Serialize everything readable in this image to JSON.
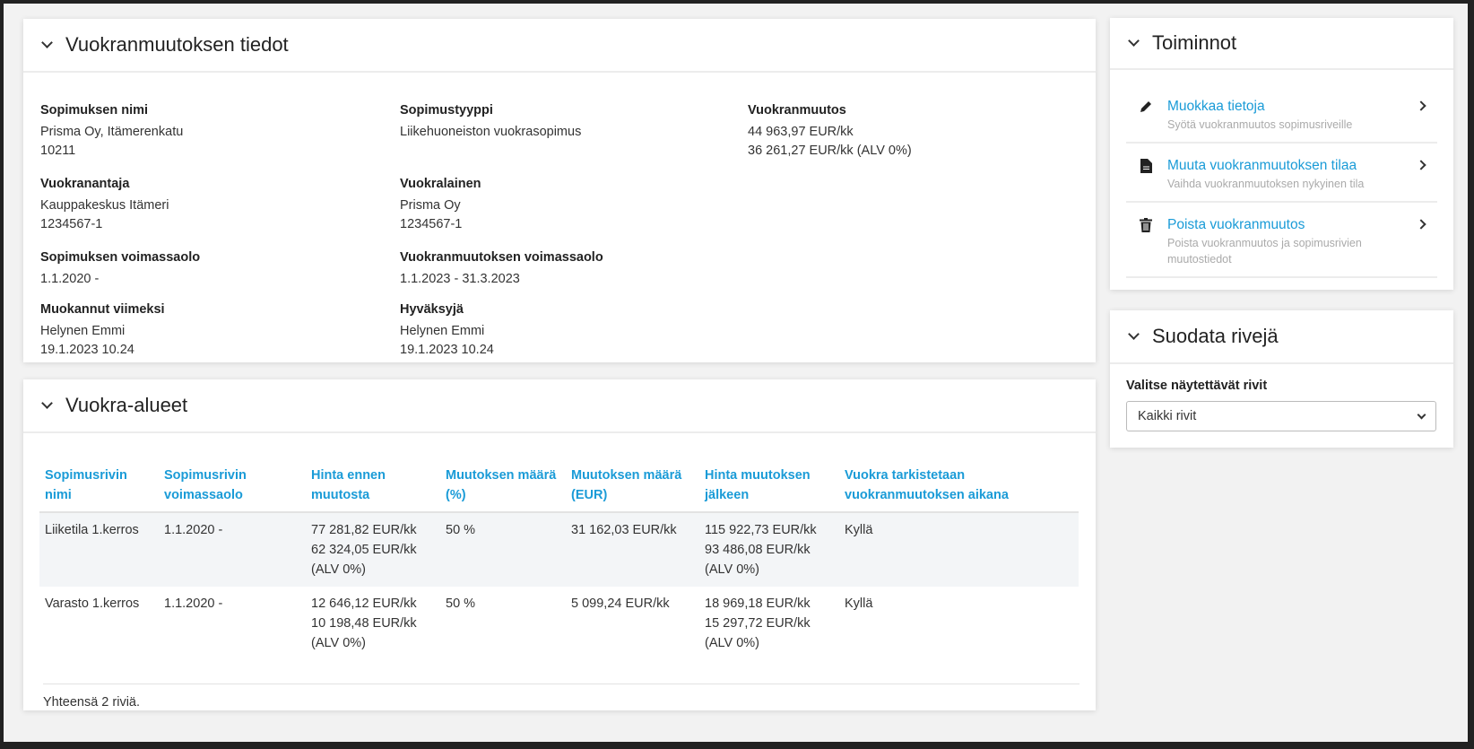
{
  "details": {
    "title": "Vuokranmuutoksen tiedot",
    "fields": [
      {
        "label": "Sopimuksen nimi",
        "lines": [
          "Prisma Oy, Itämerenkatu",
          "10211"
        ]
      },
      {
        "label": "Sopimustyyppi",
        "lines": [
          "Liikehuoneiston vuokrasopimus"
        ]
      },
      {
        "label": "Vuokranmuutos",
        "lines": [
          "44 963,97 EUR/kk",
          "36 261,27 EUR/kk (ALV 0%)"
        ]
      },
      {
        "label": "Vuokranantaja",
        "lines": [
          "Kauppakeskus Itämeri",
          "1234567-1"
        ]
      },
      {
        "label": "Vuokralainen",
        "lines": [
          "Prisma Oy",
          "1234567-1"
        ]
      },
      {
        "label": "Sopimuksen voimassaolo",
        "lines": [
          "1.1.2020 -"
        ]
      },
      {
        "label": "Vuokranmuutoksen voimassaolo",
        "lines": [
          "1.1.2023 - 31.3.2023"
        ]
      },
      {
        "label": "Muokannut viimeksi",
        "lines": [
          "Helynen Emmi",
          "19.1.2023 10.24"
        ]
      },
      {
        "label": "Hyväksyjä",
        "lines": [
          "Helynen Emmi",
          "19.1.2023 10.24"
        ]
      }
    ]
  },
  "areas": {
    "title": "Vuokra-alueet",
    "columns": [
      "Sopimusrivin nimi",
      "Sopimusrivin voimassaolo",
      "Hinta ennen muutosta",
      "Muutoksen määrä (%)",
      "Muutoksen määrä (EUR)",
      "Hinta muutoksen jälkeen",
      "Vuokra tarkistetaan vuokranmuutoksen aikana"
    ],
    "rows": [
      {
        "name": "Liiketila 1.kerros",
        "validity": "1.1.2020 -",
        "before": [
          "77 281,82 EUR/kk",
          "62 324,05 EUR/kk",
          "(ALV 0%)"
        ],
        "pct": "50 %",
        "eur": "31 162,03 EUR/kk",
        "after": [
          "115 922,73 EUR/kk",
          "93 486,08 EUR/kk",
          "(ALV 0%)"
        ],
        "review": "Kyllä"
      },
      {
        "name": "Varasto 1.kerros",
        "validity": "1.1.2020 -",
        "before": [
          "12 646,12 EUR/kk",
          "10 198,48 EUR/kk",
          "(ALV 0%)"
        ],
        "pct": "50 %",
        "eur": "5 099,24 EUR/kk",
        "after": [
          "18 969,18 EUR/kk",
          "15 297,72 EUR/kk",
          "(ALV 0%)"
        ],
        "review": "Kyllä"
      }
    ],
    "footer": "Yhteensä 2 riviä."
  },
  "actions": {
    "title": "Toiminnot",
    "items": [
      {
        "icon": "pencil-icon",
        "title": "Muokkaa tietoja",
        "subtitle": "Syötä vuokranmuutos sopimusriveille"
      },
      {
        "icon": "document-icon",
        "title": "Muuta vuokranmuutoksen tilaa",
        "subtitle": "Vaihda vuokranmuutoksen nykyinen tila"
      },
      {
        "icon": "trash-icon",
        "title": "Poista vuokranmuutos",
        "subtitle": "Poista vuokranmuutos ja sopimusrivien muutostiedot"
      }
    ]
  },
  "filter": {
    "title": "Suodata rivejä",
    "label": "Valitse näytettävät rivit",
    "selected": "Kaikki rivit"
  },
  "colors": {
    "accent": "#1a9bd7"
  }
}
